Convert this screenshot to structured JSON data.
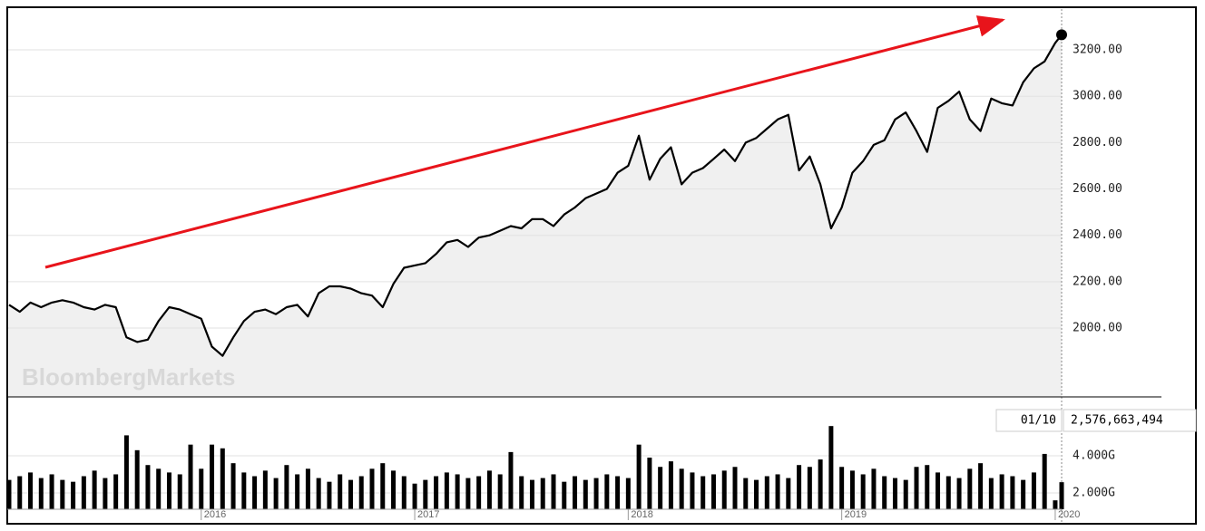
{
  "chart_data": [
    {
      "type": "line",
      "watermark": "BloombergMarkets",
      "x": [
        2015.1,
        2015.15,
        2015.2,
        2015.25,
        2015.3,
        2015.35,
        2015.4,
        2015.45,
        2015.5,
        2015.55,
        2015.6,
        2015.65,
        2015.7,
        2015.75,
        2015.8,
        2015.85,
        2015.9,
        2015.95,
        2016.0,
        2016.05,
        2016.1,
        2016.15,
        2016.2,
        2016.25,
        2016.3,
        2016.35,
        2016.4,
        2016.45,
        2016.5,
        2016.55,
        2016.6,
        2016.65,
        2016.7,
        2016.75,
        2016.8,
        2016.85,
        2016.9,
        2016.95,
        2017.0,
        2017.05,
        2017.1,
        2017.15,
        2017.2,
        2017.25,
        2017.3,
        2017.35,
        2017.4,
        2017.45,
        2017.5,
        2017.55,
        2017.6,
        2017.65,
        2017.7,
        2017.75,
        2017.8,
        2017.85,
        2017.9,
        2017.95,
        2018.0,
        2018.05,
        2018.1,
        2018.15,
        2018.2,
        2018.25,
        2018.3,
        2018.35,
        2018.4,
        2018.45,
        2018.5,
        2018.55,
        2018.6,
        2018.65,
        2018.7,
        2018.75,
        2018.8,
        2018.85,
        2018.9,
        2018.95,
        2019.0,
        2019.05,
        2019.1,
        2019.15,
        2019.2,
        2019.25,
        2019.3,
        2019.35,
        2019.4,
        2019.45,
        2019.5,
        2019.55,
        2019.6,
        2019.65,
        2019.7,
        2019.75,
        2019.8,
        2019.85,
        2019.9,
        2019.95,
        2020.0,
        2020.03
      ],
      "series": [
        {
          "color": "#000000",
          "values": [
            2100,
            2070,
            2110,
            2090,
            2110,
            2120,
            2110,
            2090,
            2080,
            2100,
            2090,
            1960,
            1940,
            1950,
            2030,
            2090,
            2080,
            2060,
            2040,
            1920,
            1880,
            1960,
            2030,
            2070,
            2080,
            2060,
            2090,
            2100,
            2050,
            2150,
            2180,
            2180,
            2170,
            2150,
            2140,
            2090,
            2190,
            2260,
            2270,
            2280,
            2320,
            2370,
            2380,
            2350,
            2390,
            2400,
            2420,
            2440,
            2430,
            2470,
            2470,
            2440,
            2490,
            2520,
            2560,
            2580,
            2600,
            2670,
            2700,
            2830,
            2640,
            2730,
            2780,
            2620,
            2670,
            2690,
            2730,
            2770,
            2720,
            2800,
            2820,
            2860,
            2900,
            2920,
            2680,
            2740,
            2620,
            2430,
            2520,
            2670,
            2720,
            2790,
            2810,
            2900,
            2930,
            2850,
            2760,
            2950,
            2980,
            3020,
            2900,
            2850,
            2990,
            2970,
            2960,
            3060,
            3120,
            3150,
            3230,
            3265
          ]
        }
      ],
      "xlim": [
        2015.1,
        2020.03
      ],
      "ylim": [
        1703,
        3376
      ],
      "yticks": [
        {
          "value": 2000,
          "label": "2000.00"
        },
        {
          "value": 2200,
          "label": "2200.00"
        },
        {
          "value": 2400,
          "label": "2400.00"
        },
        {
          "value": 2600,
          "label": "2600.00"
        },
        {
          "value": 2800,
          "label": "2800.00"
        },
        {
          "value": 3000,
          "label": "3000.00"
        },
        {
          "value": 3200,
          "label": "3200.00"
        }
      ],
      "grid": true,
      "area_color": "#f0f0f0"
    },
    {
      "type": "bar",
      "x": [
        2015.1,
        2015.15,
        2015.2,
        2015.25,
        2015.3,
        2015.35,
        2015.4,
        2015.45,
        2015.5,
        2015.55,
        2015.6,
        2015.65,
        2015.7,
        2015.75,
        2015.8,
        2015.85,
        2015.9,
        2015.95,
        2016.0,
        2016.05,
        2016.1,
        2016.15,
        2016.2,
        2016.25,
        2016.3,
        2016.35,
        2016.4,
        2016.45,
        2016.5,
        2016.55,
        2016.6,
        2016.65,
        2016.7,
        2016.75,
        2016.8,
        2016.85,
        2016.9,
        2016.95,
        2017.0,
        2017.05,
        2017.1,
        2017.15,
        2017.2,
        2017.25,
        2017.3,
        2017.35,
        2017.4,
        2017.45,
        2017.5,
        2017.55,
        2017.6,
        2017.65,
        2017.7,
        2017.75,
        2017.8,
        2017.85,
        2017.9,
        2017.95,
        2018.0,
        2018.05,
        2018.1,
        2018.15,
        2018.2,
        2018.25,
        2018.3,
        2018.35,
        2018.4,
        2018.45,
        2018.5,
        2018.55,
        2018.6,
        2018.65,
        2018.7,
        2018.75,
        2018.8,
        2018.85,
        2018.9,
        2018.95,
        2019.0,
        2019.05,
        2019.1,
        2019.15,
        2019.2,
        2019.25,
        2019.3,
        2019.35,
        2019.4,
        2019.45,
        2019.5,
        2019.55,
        2019.6,
        2019.65,
        2019.7,
        2019.75,
        2019.8,
        2019.85,
        2019.9,
        2019.95,
        2020.0,
        2020.03
      ],
      "series": [
        {
          "color": "#000000",
          "values": [
            2.7,
            2.9,
            3.1,
            2.8,
            3.0,
            2.7,
            2.6,
            2.9,
            3.2,
            2.8,
            3.0,
            5.1,
            4.3,
            3.5,
            3.3,
            3.1,
            3.0,
            4.6,
            3.3,
            4.6,
            4.4,
            3.6,
            3.1,
            2.9,
            3.2,
            2.8,
            3.5,
            3.0,
            3.3,
            2.8,
            2.6,
            3.0,
            2.7,
            2.9,
            3.3,
            3.6,
            3.2,
            2.9,
            2.5,
            2.7,
            2.9,
            3.1,
            3.0,
            2.8,
            2.9,
            3.2,
            3.0,
            4.2,
            2.9,
            2.7,
            2.8,
            3.0,
            2.6,
            2.9,
            2.7,
            2.8,
            3.0,
            2.9,
            2.8,
            4.6,
            3.9,
            3.4,
            3.7,
            3.3,
            3.1,
            2.9,
            3.0,
            3.2,
            3.4,
            2.8,
            2.7,
            2.9,
            3.0,
            2.8,
            3.5,
            3.4,
            3.8,
            5.6,
            3.4,
            3.2,
            3.0,
            3.3,
            2.9,
            2.8,
            2.7,
            3.4,
            3.5,
            3.1,
            2.9,
            2.8,
            3.3,
            3.6,
            2.8,
            3.0,
            2.9,
            2.7,
            3.1,
            4.1,
            1.6,
            2.576663494
          ]
        }
      ],
      "xlim": [
        2015.1,
        2020.03
      ],
      "xticks": [
        2016,
        2017,
        2018,
        2019,
        2020
      ],
      "ylim": [
        1.12,
        7.17
      ],
      "yticks": [
        {
          "value": 2,
          "label": "2.000G"
        },
        {
          "value": 4,
          "label": "4.000G"
        }
      ],
      "grid": true,
      "crosshair": {
        "date": "01/10",
        "label": "2,576,663,494"
      }
    }
  ]
}
